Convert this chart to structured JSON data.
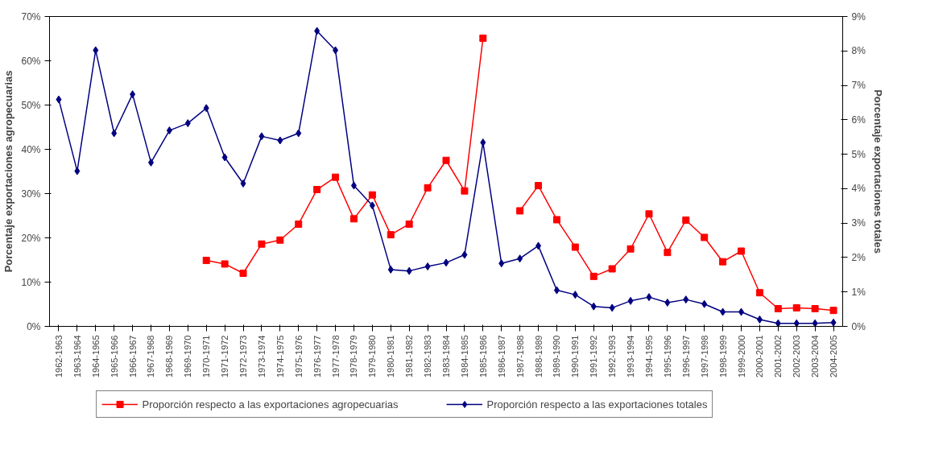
{
  "chart_data": {
    "type": "line",
    "ylabel": "Porcentaje exportaciones agropecuarias",
    "y2label": "Porcentaje exportaciones totales",
    "categories": [
      "1962-1963",
      "1963-1964",
      "1964-1965",
      "1965-1966",
      "1966-1967",
      "1967-1968",
      "1968-1969",
      "1969-1970",
      "1970-1971",
      "1971-1972",
      "1972-1973",
      "1973-1974",
      "1974-1975",
      "1975-1976",
      "1976-1977",
      "1977-1978",
      "1978-1979",
      "1979-1980",
      "1980-1981",
      "1981-1982",
      "1982-1983",
      "1983-1984",
      "1984-1985",
      "1985-1986",
      "1986-1987",
      "1987-1988",
      "1988-1989",
      "1989-1990",
      "1990-1991",
      "1991-1992",
      "1992-1993",
      "1993-1994",
      "1994-1995",
      "1995-1996",
      "1996-1997",
      "1997-1998",
      "1998-1999",
      "1999-2000",
      "2000-2001",
      "2001-2002",
      "2002-2003",
      "2003-2004",
      "2004-2005"
    ],
    "series": [
      {
        "name": "Proporción respecto a las exportaciones agropecuarias",
        "color": "#ff0000",
        "marker": "square",
        "values": [
          null,
          null,
          null,
          null,
          null,
          null,
          null,
          null,
          14.9,
          14.1,
          12.0,
          18.6,
          19.5,
          23.1,
          30.9,
          33.7,
          24.3,
          29.7,
          20.7,
          23.1,
          31.3,
          37.5,
          30.6,
          65.1,
          null,
          26.1,
          31.8,
          24.1,
          17.9,
          11.3,
          13.0,
          17.5,
          25.4,
          16.7,
          24.0,
          20.1,
          14.6,
          17.0,
          7.6,
          4.0,
          4.2,
          4.0,
          3.6
        ]
      },
      {
        "name": "Proporción respecto a las exportaciones totales",
        "color": "#000080",
        "marker": "diamond",
        "axis": "y2",
        "values": [
          6.59,
          4.51,
          8.02,
          5.61,
          6.74,
          4.76,
          5.69,
          5.9,
          6.34,
          4.91,
          4.15,
          5.52,
          5.4,
          5.61,
          8.58,
          8.02,
          4.09,
          3.51,
          1.65,
          1.61,
          1.74,
          1.85,
          2.08,
          5.34,
          1.83,
          1.97,
          2.34,
          1.05,
          0.92,
          0.58,
          0.54,
          0.74,
          0.85,
          0.69,
          0.78,
          0.65,
          0.42,
          0.42,
          0.2,
          0.09,
          0.09,
          0.09,
          0.11
        ]
      }
    ],
    "ylim": [
      0,
      70
    ],
    "yticks": [
      {
        "value": 0,
        "label": "0%"
      },
      {
        "value": 10,
        "label": "10%"
      },
      {
        "value": 20,
        "label": "20%"
      },
      {
        "value": 30,
        "label": "30%"
      },
      {
        "value": 40,
        "label": "40%"
      },
      {
        "value": 50,
        "label": "50%"
      },
      {
        "value": 60,
        "label": "60%"
      },
      {
        "value": 70,
        "label": "70%"
      }
    ],
    "y2lim": [
      0,
      9
    ],
    "y2ticks": [
      {
        "value": 0,
        "label": "0%"
      },
      {
        "value": 1,
        "label": "1%"
      },
      {
        "value": 2,
        "label": "2%"
      },
      {
        "value": 3,
        "label": "3%"
      },
      {
        "value": 4,
        "label": "4%"
      },
      {
        "value": 5,
        "label": "5%"
      },
      {
        "value": 6,
        "label": "6%"
      },
      {
        "value": 7,
        "label": "7%"
      },
      {
        "value": 8,
        "label": "8%"
      },
      {
        "value": 9,
        "label": "9%"
      }
    ],
    "grid": false,
    "legend": "bottom",
    "line_style": "solid"
  }
}
